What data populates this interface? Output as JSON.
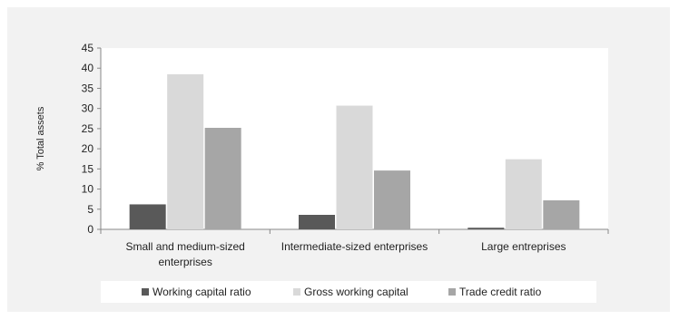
{
  "chart_data": {
    "type": "bar",
    "title": "",
    "xlabel": "",
    "ylabel": "% Total assets",
    "ylim": [
      0,
      45
    ],
    "yticks": [
      0,
      5,
      10,
      15,
      20,
      25,
      30,
      35,
      40,
      45
    ],
    "grid": false,
    "legend_position": "bottom",
    "categories": [
      [
        "Small and medium-sized",
        "enterprises"
      ],
      [
        "Intermediate-sized enterprises"
      ],
      [
        "Large entreprises"
      ]
    ],
    "series": [
      {
        "name": "Working capital ratio",
        "color": "#595959",
        "values": [
          6.2,
          3.6,
          0.4
        ]
      },
      {
        "name": "Gross working capital",
        "color": "#d9d9d9",
        "values": [
          38.5,
          30.7,
          17.4
        ]
      },
      {
        "name": "Trade credit ratio",
        "color": "#a6a6a6",
        "values": [
          25.2,
          14.6,
          7.2
        ]
      }
    ]
  }
}
